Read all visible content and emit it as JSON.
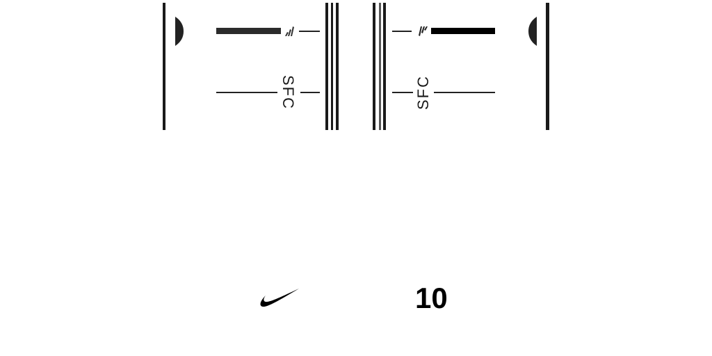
{
  "panel_left": {
    "code": "SFC"
  },
  "panel_right": {
    "code": "SFC"
  },
  "kit_number": "10",
  "colors": {
    "ink": "#1a1a1a",
    "background": "#ffffff"
  },
  "icons": [
    "adidas-logo-icon",
    "nike-swoosh-icon"
  ]
}
